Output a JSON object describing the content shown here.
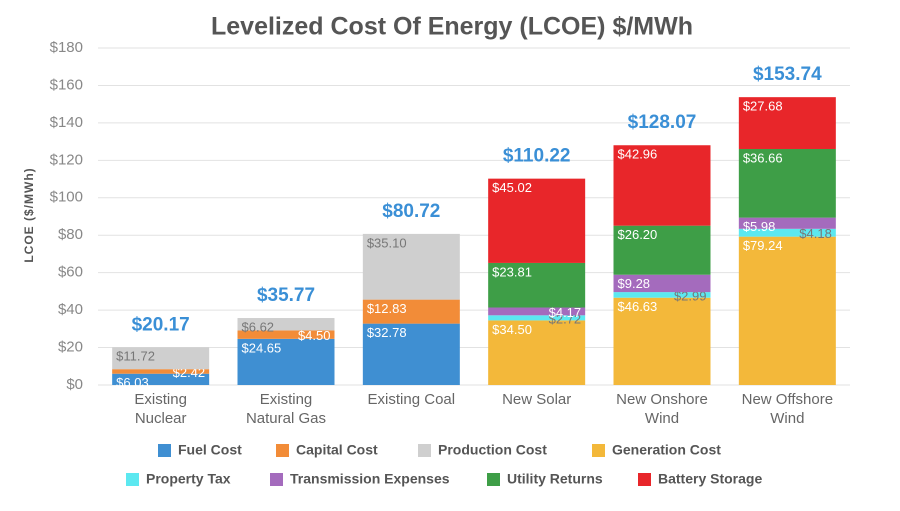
{
  "chart_data": {
    "type": "stacked_bar",
    "title": "Levelized Cost Of Energy (LCOE) $/MWh",
    "ylabel": "LCOE ($/MWh)",
    "categories": [
      "Existing\nNuclear",
      "Existing\nNatural Gas",
      "Existing Coal",
      "New Solar",
      "New Onshore\nWind",
      "New Offshore\nWind"
    ],
    "series": [
      {
        "name": "Fuel Cost",
        "color": "#3f8fd2",
        "values": [
          6.03,
          24.65,
          32.78,
          null,
          null,
          null
        ],
        "value_labels": [
          "$6.03",
          "$24.65",
          "$32.78",
          null,
          null,
          null
        ]
      },
      {
        "name": "Capital Cost",
        "color": "#f28c38",
        "values": [
          2.42,
          4.5,
          12.83,
          null,
          null,
          null
        ],
        "value_labels": [
          "$2.42",
          "$4.50",
          "$12.83",
          null,
          null,
          null
        ]
      },
      {
        "name": "Production Cost",
        "color": "#cfcfcf",
        "values": [
          11.72,
          6.62,
          35.1,
          null,
          null,
          null
        ],
        "value_labels": [
          "$11.72",
          "$6.62",
          "$35.10",
          null,
          null,
          null
        ]
      },
      {
        "name": "Generation Cost",
        "color": "#f3b83a",
        "values": [
          null,
          null,
          null,
          34.5,
          46.63,
          79.24
        ],
        "value_labels": [
          null,
          null,
          null,
          "$34.50",
          "$46.63",
          "$79.24"
        ]
      },
      {
        "name": "Property Tax",
        "color": "#5ce8f0",
        "values": [
          null,
          null,
          null,
          2.72,
          2.99,
          4.18
        ],
        "value_labels": [
          null,
          null,
          null,
          "$2.72",
          "$2.99",
          "$4.18"
        ]
      },
      {
        "name": "Transmission Expenses",
        "color": "#a46bbd",
        "values": [
          null,
          null,
          null,
          4.17,
          9.28,
          5.98
        ],
        "value_labels": [
          null,
          null,
          null,
          "$4.17",
          "$9.28",
          "$5.98"
        ]
      },
      {
        "name": "Utility Returns",
        "color": "#3e9e47",
        "values": [
          null,
          null,
          null,
          23.81,
          26.2,
          36.66
        ],
        "value_labels": [
          null,
          null,
          null,
          "$23.81",
          "$26.20",
          "$36.66"
        ]
      },
      {
        "name": "Battery Storage",
        "color": "#e8262a",
        "values": [
          null,
          null,
          null,
          45.02,
          42.96,
          27.68
        ],
        "value_labels": [
          null,
          null,
          null,
          "$45.02",
          "$42.96",
          "$27.68"
        ]
      }
    ],
    "totals": [
      20.17,
      35.77,
      80.72,
      110.22,
      128.07,
      153.74
    ],
    "total_labels": [
      "$20.17",
      "$35.77",
      "$80.72",
      "$110.22",
      "$128.07",
      "$153.74"
    ],
    "ylim": [
      0,
      180
    ],
    "yticks": [
      {
        "value": 0,
        "label": "$0"
      },
      {
        "value": 20,
        "label": "$20"
      },
      {
        "value": 40,
        "label": "$40"
      },
      {
        "value": 60,
        "label": "$60"
      },
      {
        "value": 80,
        "label": "$80"
      },
      {
        "value": 100,
        "label": "$100"
      },
      {
        "value": 120,
        "label": "$120"
      },
      {
        "value": 140,
        "label": "$140"
      },
      {
        "value": 160,
        "label": "$160"
      },
      {
        "value": 180,
        "label": "$180"
      }
    ],
    "grid": true
  }
}
